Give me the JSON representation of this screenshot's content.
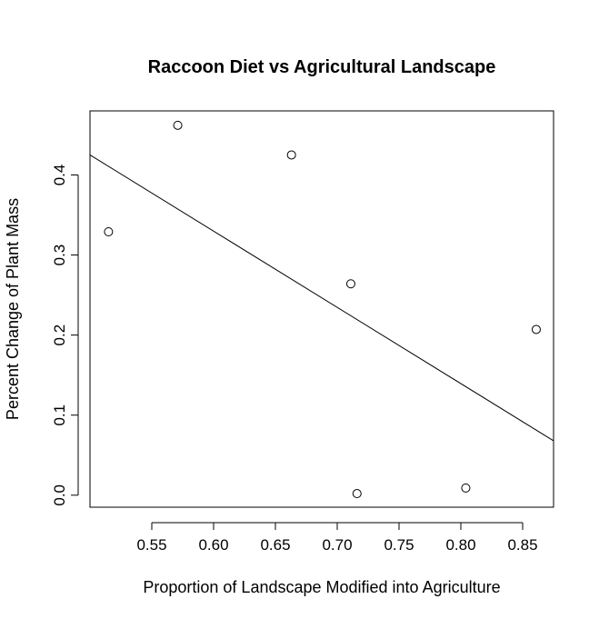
{
  "chart_data": {
    "type": "scatter",
    "title": "Raccoon Diet vs Agricultural Landscape",
    "xlabel": "Proportion of Landscape Modified into Agriculture",
    "ylabel": "Percent Change of Plant Mass",
    "xlim": [
      0.5,
      0.875
    ],
    "ylim": [
      -0.015,
      0.48
    ],
    "x_ticks": [
      0.55,
      0.6,
      0.65,
      0.7,
      0.75,
      0.8,
      0.85
    ],
    "x_tick_labels": [
      "0.55",
      "0.60",
      "0.65",
      "0.70",
      "0.75",
      "0.80",
      "0.85"
    ],
    "y_ticks": [
      0.0,
      0.1,
      0.2,
      0.3,
      0.4
    ],
    "y_tick_labels": [
      "0.0",
      "0.1",
      "0.2",
      "0.3",
      "0.4"
    ],
    "grid": false,
    "series": [
      {
        "points": [
          {
            "x": 0.515,
            "y": 0.329
          },
          {
            "x": 0.571,
            "y": 0.462
          },
          {
            "x": 0.663,
            "y": 0.425
          },
          {
            "x": 0.711,
            "y": 0.264
          },
          {
            "x": 0.716,
            "y": 0.002
          },
          {
            "x": 0.804,
            "y": 0.009
          },
          {
            "x": 0.861,
            "y": 0.207
          }
        ],
        "marker": "open-circle",
        "color": "#000000"
      }
    ],
    "fit_line": {
      "type": "linear-regression",
      "color": "#000000",
      "start": {
        "x": 0.5,
        "y": 0.425
      },
      "end": {
        "x": 0.875,
        "y": 0.068
      }
    }
  }
}
